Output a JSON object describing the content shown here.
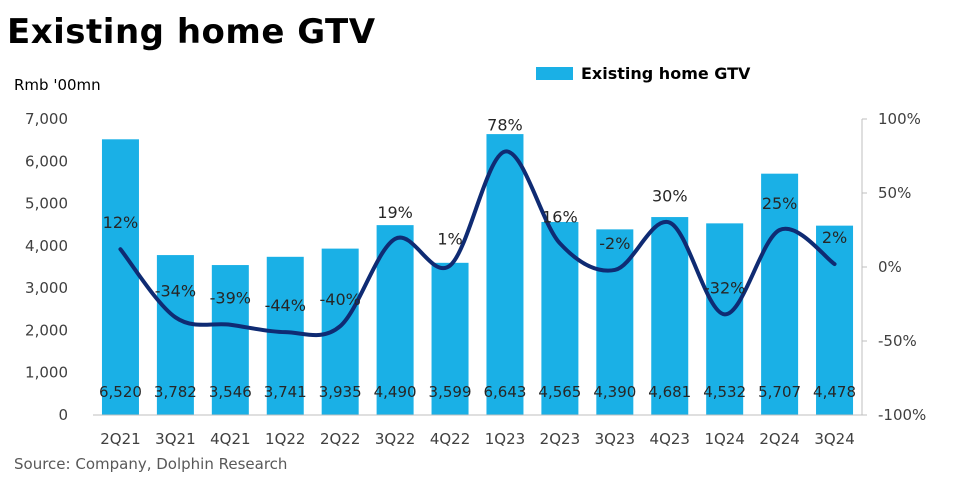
{
  "header": {
    "title": "Existing home GTV",
    "unit": "Rmb '00mn",
    "source": "Source: Company, Dolphin Research"
  },
  "legend": {
    "label": "Existing home GTV"
  },
  "colors": {
    "bar": "#1ab0e6",
    "line": "#0f2b73",
    "axis_text": "#404040",
    "axis_line": "#bfbfbf"
  },
  "chart_data": {
    "type": "bar",
    "categories": [
      "2Q21",
      "3Q21",
      "4Q21",
      "1Q22",
      "2Q22",
      "3Q22",
      "4Q22",
      "1Q23",
      "2Q23",
      "3Q23",
      "4Q23",
      "1Q24",
      "2Q24",
      "3Q24"
    ],
    "series": [
      {
        "name": "Existing home GTV",
        "type": "bar",
        "axis": "left",
        "values": [
          6520,
          3782,
          3546,
          3741,
          3935,
          4490,
          3599,
          6643,
          4565,
          4390,
          4681,
          4532,
          5707,
          4478
        ],
        "labels": [
          "6,520",
          "3,782",
          "3,546",
          "3,741",
          "3,935",
          "4,490",
          "3,599",
          "6,643",
          "4,565",
          "4,390",
          "4,681",
          "4,532",
          "5,707",
          "4,478"
        ]
      },
      {
        "type": "line",
        "axis": "right",
        "values": [
          12,
          -34,
          -39,
          -44,
          -40,
          19,
          1,
          78,
          16,
          -2,
          30,
          -32,
          25,
          2
        ],
        "labels": [
          "12%",
          "-34%",
          "-39%",
          "-44%",
          "-40%",
          "19%",
          "1%",
          "78%",
          "16%",
          "-2%",
          "30%",
          "-32%",
          "25%",
          "2%"
        ]
      }
    ],
    "ylim": [
      0,
      7000
    ],
    "yticks": [
      0,
      1000,
      2000,
      3000,
      4000,
      5000,
      6000,
      7000
    ],
    "ytick_labels": [
      "0",
      "1,000",
      "2,000",
      "3,000",
      "4,000",
      "5,000",
      "6,000",
      "7,000"
    ],
    "y2lim": [
      -100,
      100
    ],
    "y2ticks": [
      -100,
      -50,
      0,
      50,
      100
    ],
    "y2tick_labels": [
      "-100%",
      "-50%",
      "0%",
      "50%",
      "100%"
    ],
    "grid": false,
    "legend_position": "top-right"
  }
}
